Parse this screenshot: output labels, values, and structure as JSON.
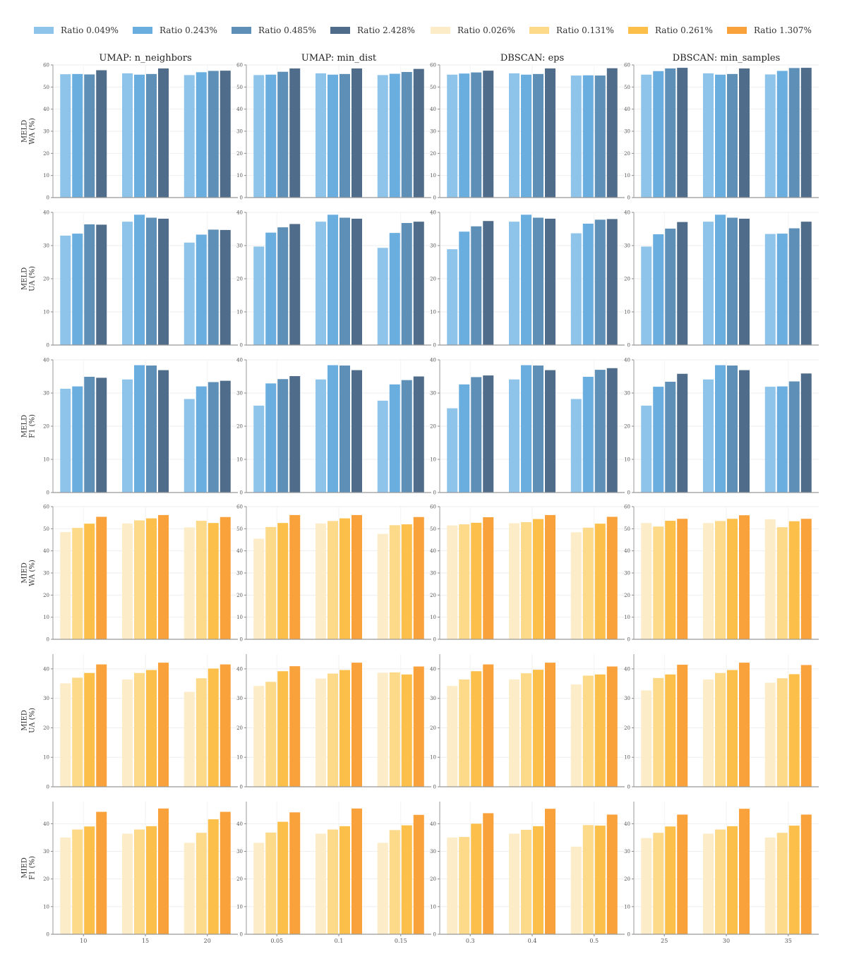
{
  "chart_data": {
    "type": "bar",
    "legend": {
      "placement": "top",
      "entries": [
        {
          "name": "Ratio 0.049%",
          "color": "#8ec4ea"
        },
        {
          "name": "Ratio 0.243%",
          "color": "#6aaee0"
        },
        {
          "name": "Ratio 0.485%",
          "color": "#5d8fb7"
        },
        {
          "name": "Ratio 2.428%",
          "color": "#4f6d8a"
        },
        {
          "name": "Ratio 0.026%",
          "color": "#fdecc8"
        },
        {
          "name": "Ratio 0.131%",
          "color": "#fdd98a"
        },
        {
          "name": "Ratio 0.261%",
          "color": "#fcc04a"
        },
        {
          "name": "Ratio 1.307%",
          "color": "#f9a13a"
        }
      ]
    },
    "columns": [
      {
        "title": "UMAP: n_neighbors",
        "categories": [
          "10",
          "15",
          "20"
        ]
      },
      {
        "title": "UMAP: min_dist",
        "categories": [
          "0.05",
          "0.1",
          "0.15"
        ]
      },
      {
        "title": "DBSCAN: eps",
        "categories": [
          "0.3",
          "0.4",
          "0.5"
        ]
      },
      {
        "title": "DBSCAN: min_samples",
        "categories": [
          "25",
          "30",
          "35"
        ]
      }
    ],
    "rows": [
      {
        "label_lines": [
          "MELD",
          "WA (%)"
        ],
        "group": "meld",
        "ylim": [
          0,
          60
        ],
        "yticks": [
          "0",
          "10",
          "20",
          "30",
          "40",
          "50",
          "60"
        ],
        "values": [
          [
            [
              55.8,
              55.9,
              55.7,
              57.6
            ],
            [
              56.2,
              55.6,
              55.9,
              58.4
            ],
            [
              55.4,
              56.7,
              57.3,
              57.4
            ]
          ],
          [
            [
              55.4,
              55.6,
              56.9,
              58.4
            ],
            [
              56.2,
              55.6,
              55.9,
              58.4
            ],
            [
              55.4,
              56.0,
              56.8,
              58.2
            ]
          ],
          [
            [
              55.6,
              56.1,
              56.6,
              57.4
            ],
            [
              56.2,
              55.6,
              55.9,
              58.4
            ],
            [
              55.2,
              55.3,
              55.2,
              58.5
            ]
          ],
          [
            [
              55.6,
              57.2,
              58.4,
              58.7
            ],
            [
              56.2,
              55.6,
              55.9,
              58.4
            ],
            [
              55.7,
              57.3,
              58.6,
              58.7
            ]
          ]
        ]
      },
      {
        "label_lines": [
          "MELD",
          "UA (%)"
        ],
        "group": "meld",
        "ylim": [
          0,
          40
        ],
        "yticks": [
          "0",
          "10",
          "20",
          "30",
          "40"
        ],
        "values": [
          [
            [
              33.0,
              33.6,
              36.4,
              36.3
            ],
            [
              37.2,
              39.3,
              38.4,
              38.1
            ],
            [
              30.9,
              33.3,
              34.8,
              34.7
            ]
          ],
          [
            [
              29.7,
              33.9,
              35.5,
              36.5
            ],
            [
              37.2,
              39.3,
              38.4,
              38.1
            ],
            [
              29.3,
              33.8,
              36.8,
              37.2
            ]
          ],
          [
            [
              28.9,
              34.2,
              35.8,
              37.4
            ],
            [
              37.2,
              39.3,
              38.4,
              38.1
            ],
            [
              33.7,
              36.6,
              37.8,
              38.0
            ]
          ],
          [
            [
              29.7,
              33.4,
              35.1,
              37.1
            ],
            [
              37.2,
              39.3,
              38.4,
              38.1
            ],
            [
              33.5,
              33.6,
              35.2,
              37.2
            ]
          ]
        ]
      },
      {
        "label_lines": [
          "MELD",
          "F1 (%)"
        ],
        "group": "meld",
        "ylim": [
          0,
          40
        ],
        "yticks": [
          "0",
          "10",
          "20",
          "30",
          "40"
        ],
        "values": [
          [
            [
              31.3,
              32.0,
              34.9,
              34.6
            ],
            [
              34.1,
              38.4,
              38.3,
              36.9
            ],
            [
              28.2,
              32.0,
              33.3,
              33.7
            ]
          ],
          [
            [
              26.2,
              32.9,
              34.2,
              35.1
            ],
            [
              34.1,
              38.4,
              38.3,
              36.9
            ],
            [
              27.7,
              32.6,
              33.9,
              35.0
            ]
          ],
          [
            [
              25.4,
              32.6,
              34.8,
              35.3
            ],
            [
              34.1,
              38.4,
              38.3,
              36.9
            ],
            [
              28.2,
              34.9,
              37.0,
              37.5
            ]
          ],
          [
            [
              26.2,
              31.9,
              33.4,
              35.8
            ],
            [
              34.1,
              38.4,
              38.3,
              36.9
            ],
            [
              31.9,
              32.0,
              33.5,
              35.9
            ]
          ]
        ]
      },
      {
        "label_lines": [
          "MIED",
          "WA (%)"
        ],
        "group": "mied",
        "ylim": [
          0,
          60
        ],
        "yticks": [
          "0",
          "10",
          "20",
          "30",
          "40",
          "50",
          "60"
        ],
        "values": [
          [
            [
              48.5,
              50.4,
              52.3,
              55.4
            ],
            [
              52.4,
              53.8,
              54.7,
              56.2
            ],
            [
              50.6,
              53.6,
              52.6,
              55.3
            ]
          ],
          [
            [
              45.5,
              50.8,
              52.6,
              56.2
            ],
            [
              52.4,
              53.5,
              54.7,
              56.2
            ],
            [
              47.7,
              51.6,
              52.0,
              55.3
            ]
          ],
          [
            [
              51.5,
              52.0,
              52.7,
              55.2
            ],
            [
              52.5,
              53.0,
              54.4,
              56.2
            ],
            [
              48.4,
              50.5,
              52.3,
              55.4
            ]
          ],
          [
            [
              52.6,
              51.0,
              53.6,
              54.5
            ],
            [
              52.6,
              53.5,
              54.5,
              56.1
            ],
            [
              54.3,
              50.7,
              53.4,
              54.5
            ]
          ]
        ]
      },
      {
        "label_lines": [
          "MIED",
          "UA (%)"
        ],
        "group": "mied",
        "ylim": [
          0,
          45
        ],
        "yticks": [
          "0",
          "10",
          "20",
          "30",
          "40"
        ],
        "values": [
          [
            [
              35.1,
              37.0,
              38.6,
              41.5
            ],
            [
              36.4,
              38.6,
              39.6,
              42.1
            ],
            [
              32.2,
              36.8,
              40.1,
              41.5
            ]
          ],
          [
            [
              34.2,
              35.6,
              39.2,
              40.9
            ],
            [
              36.7,
              38.4,
              39.6,
              42.1
            ],
            [
              38.7,
              38.8,
              38.1,
              40.8
            ]
          ],
          [
            [
              34.2,
              36.4,
              39.2,
              41.5
            ],
            [
              36.4,
              38.5,
              39.7,
              42.1
            ],
            [
              34.7,
              37.7,
              38.1,
              40.8
            ]
          ],
          [
            [
              32.7,
              36.9,
              38.1,
              41.4
            ],
            [
              36.4,
              38.6,
              39.6,
              42.1
            ],
            [
              35.3,
              36.8,
              38.2,
              41.3
            ]
          ]
        ]
      },
      {
        "label_lines": [
          "MIED",
          "F1 (%)"
        ],
        "group": "mied",
        "ylim": [
          0,
          48
        ],
        "yticks": [
          "0",
          "10",
          "20",
          "30",
          "40"
        ],
        "values": [
          [
            [
              35.0,
              37.9,
              39.0,
              44.3
            ],
            [
              36.4,
              37.9,
              39.1,
              45.5
            ],
            [
              33.1,
              36.7,
              41.6,
              44.3
            ]
          ],
          [
            [
              33.1,
              36.8,
              40.7,
              44.1
            ],
            [
              36.4,
              37.9,
              39.1,
              45.5
            ],
            [
              33.1,
              37.7,
              39.4,
              43.2
            ]
          ],
          [
            [
              35.0,
              35.2,
              40.0,
              43.8
            ],
            [
              36.4,
              37.8,
              39.1,
              45.4
            ],
            [
              31.7,
              39.5,
              39.3,
              43.3
            ]
          ],
          [
            [
              34.8,
              36.7,
              39.0,
              43.3
            ],
            [
              36.4,
              37.9,
              39.1,
              45.4
            ],
            [
              35.0,
              36.7,
              39.3,
              43.3
            ]
          ]
        ]
      }
    ],
    "grid": true
  }
}
